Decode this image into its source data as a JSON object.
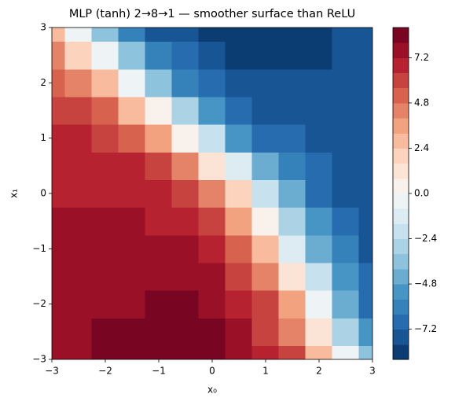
{
  "chart_data": {
    "type": "contour",
    "title": "MLP (tanh) 2→8→1 — smoother surface than ReLU",
    "xlabel": "x₀",
    "ylabel": "x₁",
    "x": [
      -3,
      -2.5,
      -2,
      -1.5,
      -1,
      -0.5,
      0,
      0.5,
      1,
      1.5,
      2,
      2.5,
      3
    ],
    "y": [
      -3,
      -2.5,
      -2,
      -1.5,
      -1,
      -0.5,
      0,
      0.5,
      1,
      1.5,
      2,
      2.5,
      3
    ],
    "z": [
      [
        7.6,
        7.9,
        8.1,
        8.3,
        8.6,
        8.8,
        8.5,
        7.8,
        7.0,
        5.7,
        3.1,
        -0.4,
        -3.6
      ],
      [
        7.6,
        7.8,
        8.0,
        8.1,
        8.3,
        8.4,
        8.0,
        7.3,
        6.3,
        4.1,
        0.9,
        -2.6,
        -5.4
      ],
      [
        7.5,
        7.7,
        7.8,
        7.9,
        8.0,
        8.0,
        7.7,
        7.0,
        5.7,
        3.2,
        -0.6,
        -4.1,
        -6.5
      ],
      [
        7.4,
        7.5,
        7.6,
        7.7,
        7.7,
        7.7,
        7.4,
        6.3,
        4.4,
        1.3,
        -2.4,
        -5.4,
        -7.1
      ],
      [
        7.3,
        7.4,
        7.4,
        7.4,
        7.4,
        7.2,
        6.6,
        5.3,
        2.7,
        -1.0,
        -4.4,
        -6.4,
        -7.3
      ],
      [
        7.2,
        7.2,
        7.2,
        7.2,
        7.1,
        6.8,
        5.8,
        3.9,
        0.7,
        -2.8,
        -5.6,
        -6.9,
        -7.5
      ],
      [
        7.0,
        7.0,
        7.0,
        6.9,
        6.6,
        5.9,
        4.4,
        1.8,
        -1.8,
        -4.8,
        -6.6,
        -7.3,
        -7.6
      ],
      [
        6.8,
        6.8,
        6.7,
        6.4,
        5.6,
        4.1,
        1.5,
        -1.5,
        -4.2,
        -6.1,
        -7.0,
        -7.4,
        -7.6
      ],
      [
        6.6,
        6.5,
        6.1,
        5.3,
        3.5,
        0.7,
        -2.4,
        -5.0,
        -6.5,
        -7.1,
        -7.4,
        -7.5,
        -7.6
      ],
      [
        6.2,
        5.8,
        4.8,
        3.0,
        0.4,
        -2.8,
        -5.3,
        -6.7,
        -7.4,
        -7.6,
        -7.6,
        -7.6,
        -7.6
      ],
      [
        5.4,
        4.5,
        2.6,
        -0.2,
        -3.4,
        -5.8,
        -7.0,
        -7.6,
        -7.9,
        -7.9,
        -7.8,
        -7.7,
        -7.6
      ],
      [
        4.2,
        2.2,
        -0.6,
        -3.8,
        -6.0,
        -7.2,
        -7.8,
        -8.2,
        -8.4,
        -8.3,
        -8.1,
        -7.8,
        -7.6
      ],
      [
        2.5,
        -0.3,
        -3.6,
        -6.0,
        -7.3,
        -8.0,
        -8.4,
        -8.6,
        -8.8,
        -8.7,
        -8.3,
        -7.9,
        -7.6
      ]
    ],
    "xlim": [
      -3,
      3
    ],
    "ylim": [
      -3,
      3
    ],
    "xticks": [
      {
        "value": -3,
        "label": "−3"
      },
      {
        "value": -2,
        "label": "−2"
      },
      {
        "value": -1,
        "label": "−1"
      },
      0,
      1,
      2,
      3
    ],
    "yticks": [
      {
        "value": -3,
        "label": "−3"
      },
      {
        "value": -2,
        "label": "−2"
      },
      {
        "value": -1,
        "label": "−1"
      },
      0,
      1,
      2,
      3
    ],
    "levels": [
      -8.8,
      -8,
      -7.2,
      -6.4,
      -5.6,
      -4.8,
      -4,
      -3.2,
      -2.4,
      -1.6,
      -0.8,
      0,
      0.8,
      1.6,
      2.4,
      3.2,
      4,
      4.8,
      5.6,
      6.4,
      7.2,
      8,
      8.8
    ],
    "colorbar_ticks": [
      {
        "value": -7.2,
        "label": "−7.2"
      },
      {
        "value": -4.8,
        "label": "−4.8"
      },
      {
        "value": -2.4,
        "label": "−2.4"
      },
      {
        "value": 0,
        "label": "0.0"
      },
      2.4,
      4.8,
      7.2
    ],
    "colormap": [
      "#053061",
      "#2166ac",
      "#4393c3",
      "#92c5de",
      "#d1e5f0",
      "#f7f7f7",
      "#fddbc7",
      "#f4a582",
      "#d6604d",
      "#b2182b",
      "#67001f"
    ]
  }
}
